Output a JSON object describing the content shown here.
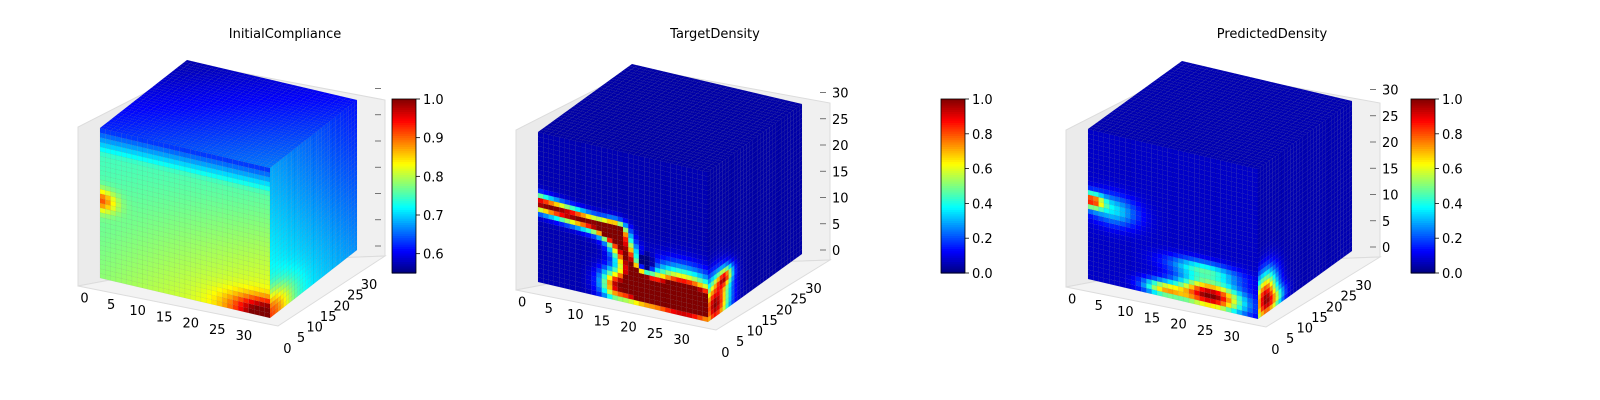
{
  "chart_data": [
    {
      "type": "3d-voxel",
      "title": "InitialCompliance",
      "axes": {
        "x": {
          "range": [
            0,
            32
          ],
          "ticks": [
            0,
            5,
            10,
            15,
            20,
            25,
            30
          ]
        },
        "y": {
          "range": [
            0,
            32
          ],
          "ticks": [
            0,
            5,
            10,
            15,
            20,
            25,
            30
          ]
        },
        "z": {
          "range": [
            0,
            32
          ],
          "ticks": [],
          "tick_labels_shown": false
        }
      },
      "colorbar": {
        "colormap": "jet",
        "min": 0.55,
        "max": 1.0,
        "ticks": [
          0.6,
          0.7,
          0.8,
          0.9,
          1.0
        ],
        "tick_labels": [
          "0.6",
          "0.7",
          "0.8",
          "0.9",
          "1.0"
        ]
      },
      "field_summary": {
        "top_face": "mostly blue (~0.6-0.7)",
        "front_face": "cyan to yellow (~0.75-0.85), orange-red hot spot on left edge near mid-height (~0.95)",
        "bottom_right_front": "red (~1.0)",
        "side_face": "cyan/teal with green lower part (~0.7-0.8)"
      }
    },
    {
      "type": "3d-voxel",
      "title": "TargetDensity",
      "axes": {
        "x": {
          "range": [
            0,
            32
          ],
          "ticks": [
            0,
            5,
            10,
            15,
            20,
            25,
            30
          ]
        },
        "y": {
          "range": [
            0,
            32
          ],
          "ticks": [
            0,
            5,
            10,
            15,
            20,
            25,
            30
          ]
        },
        "z": {
          "range": [
            0,
            32
          ],
          "ticks": [
            0,
            5,
            10,
            15,
            20,
            25,
            30
          ]
        }
      },
      "colorbar": {
        "colormap": "jet",
        "min": 0.0,
        "max": 1.0,
        "ticks": [
          0.0,
          0.2,
          0.4,
          0.6,
          0.8,
          1.0
        ],
        "tick_labels": [
          "0.0",
          "0.2",
          "0.4",
          "0.6",
          "0.8",
          "1.0"
        ]
      },
      "field_summary": {
        "background": "dark blue (~0.0)",
        "structure": "red beam from left edge near mid-height sloping down to bottom-right, with curved support near bottom center (~1.0)"
      }
    },
    {
      "type": "3d-voxel",
      "title": "PredictedDensity",
      "axes": {
        "x": {
          "range": [
            0,
            32
          ],
          "ticks": [
            0,
            5,
            10,
            15,
            20,
            25,
            30
          ]
        },
        "y": {
          "range": [
            0,
            32
          ],
          "ticks": [
            0,
            5,
            10,
            15,
            20,
            25,
            30
          ]
        },
        "z": {
          "range": [
            0,
            32
          ],
          "ticks": [
            0,
            5,
            10,
            15,
            20,
            25,
            30
          ]
        }
      },
      "colorbar": {
        "colormap": "jet",
        "min": 0.0,
        "max": 1.0,
        "ticks": [
          0.0,
          0.2,
          0.4,
          0.6,
          0.8,
          1.0
        ],
        "tick_labels": [
          "0.0",
          "0.2",
          "0.4",
          "0.6",
          "0.8",
          "1.0"
        ]
      },
      "field_summary": {
        "background": "dark blue (~0.0)",
        "structure": "orange spot at left edge near mid-height, red/orange band along bottom right (~0.8-1.0)"
      }
    }
  ]
}
